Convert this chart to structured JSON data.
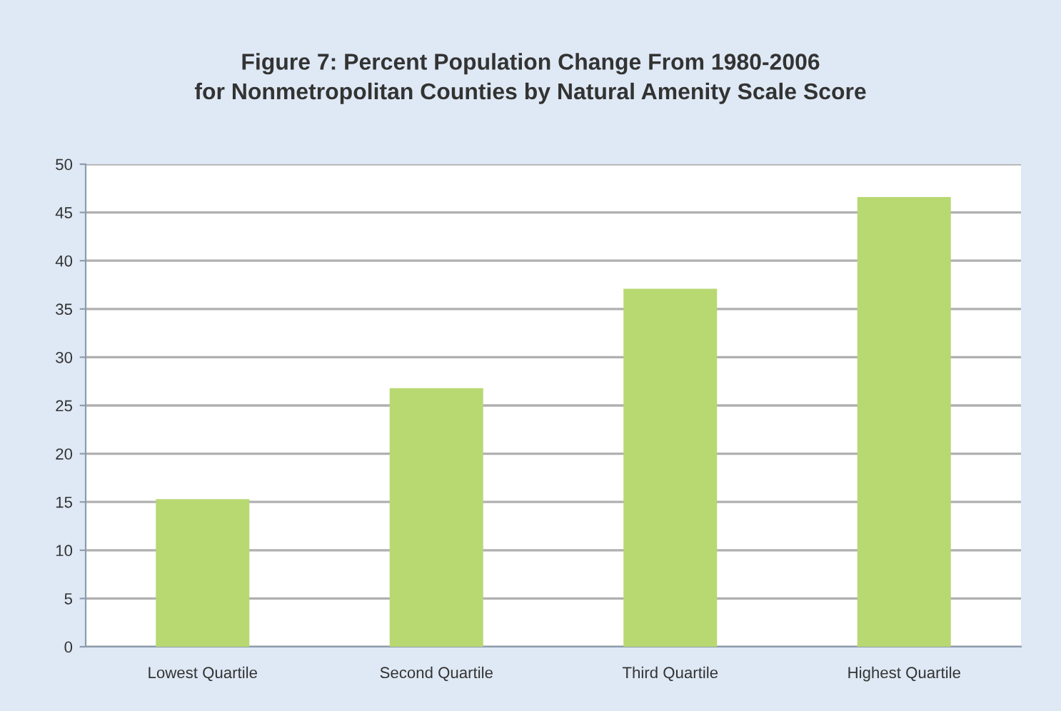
{
  "chart_data": {
    "type": "bar",
    "title": "Figure 7: Percent Population Change From 1980-2006\nfor Nonmetropolitan Counties by Natural Amenity Scale Score",
    "categories": [
      "Lowest Quartile",
      "Second Quartile",
      "Third Quartile",
      "Highest Quartile"
    ],
    "values": [
      15.3,
      26.8,
      37.1,
      46.6
    ],
    "color": "#b8d872",
    "ylim": [
      0,
      50
    ],
    "yticks": [
      0,
      5,
      10,
      15,
      20,
      25,
      30,
      35,
      40,
      45,
      50
    ],
    "grid": "y"
  }
}
